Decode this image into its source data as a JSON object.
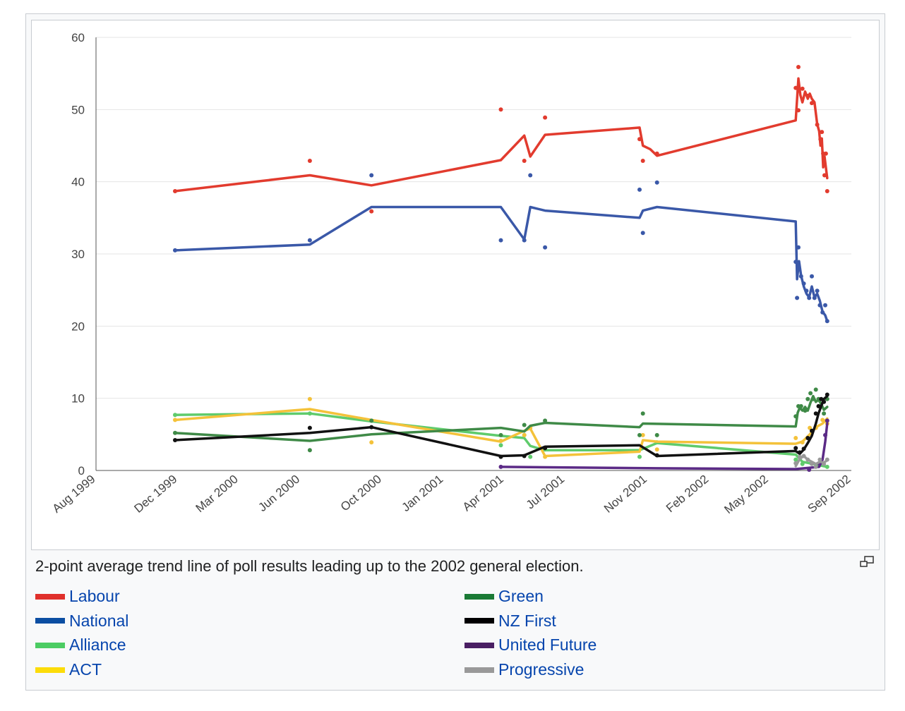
{
  "caption": "2-point average trend line of poll results leading up to the 2002 general election.",
  "icons": {
    "magnify": "magnify-clip-icon"
  },
  "legend": [
    {
      "label": "Labour",
      "color": "#e0302b"
    },
    {
      "label": "Green",
      "color": "#1a7a35"
    },
    {
      "label": "National",
      "color": "#0b4ea2"
    },
    {
      "label": "NZ First",
      "color": "#000000"
    },
    {
      "label": "Alliance",
      "color": "#4ccc63"
    },
    {
      "label": "United Future",
      "color": "#4a1f63"
    },
    {
      "label": "ACT",
      "color": "#fcdc0a"
    },
    {
      "label": "Progressive",
      "color": "#999999"
    }
  ],
  "chart_data": {
    "type": "line",
    "x_ticks": [
      "Aug 1999",
      "Dec 1999",
      "Mar 2000",
      "Jun 2000",
      "Oct 2000",
      "Jan 2001",
      "Apr 2001",
      "Jul 2001",
      "Nov 2001",
      "Feb 2002",
      "May 2002",
      "Sep 2002"
    ],
    "x_range": [
      "1999-08-01",
      "2002-09-01"
    ],
    "ylim": [
      0,
      60
    ],
    "y_ticks": [
      0,
      10,
      20,
      30,
      40,
      50,
      60
    ],
    "grid": true,
    "series": [
      {
        "name": "Labour",
        "color": "#e23b2e",
        "line": [
          [
            "1999-11-27",
            38.7
          ],
          [
            "2000-06-15",
            40.9
          ],
          [
            "2000-09-15",
            39.5
          ],
          [
            "2001-03-27",
            43
          ],
          [
            "2001-05-01",
            46.4
          ],
          [
            "2001-05-10",
            43.5
          ],
          [
            "2001-06-01",
            46.5
          ],
          [
            "2001-10-20",
            47.5
          ],
          [
            "2001-10-25",
            45
          ],
          [
            "2001-11-05",
            44.5
          ],
          [
            "2001-11-15",
            43.6
          ],
          [
            "2002-06-10",
            48.5
          ],
          [
            "2002-06-14",
            54.3
          ],
          [
            "2002-06-17",
            52
          ],
          [
            "2002-06-20",
            51
          ],
          [
            "2002-06-24",
            52.5
          ],
          [
            "2002-06-28",
            51.5
          ],
          [
            "2002-07-01",
            52.2
          ],
          [
            "2002-07-04",
            51.5
          ],
          [
            "2002-07-08",
            51
          ],
          [
            "2002-07-12",
            48
          ],
          [
            "2002-07-15",
            47
          ],
          [
            "2002-07-17",
            45
          ],
          [
            "2002-07-19",
            46
          ],
          [
            "2002-07-21",
            42
          ],
          [
            "2002-07-23",
            43.5
          ],
          [
            "2002-07-25",
            42
          ],
          [
            "2002-07-27",
            40.5
          ]
        ],
        "points": [
          [
            "1999-11-27",
            38.7
          ],
          [
            "2000-06-15",
            42.9
          ],
          [
            "2000-09-15",
            35.9
          ],
          [
            "2001-03-27",
            50
          ],
          [
            "2001-05-01",
            42.9
          ],
          [
            "2001-06-01",
            48.9
          ],
          [
            "2001-10-20",
            45.9
          ],
          [
            "2001-10-25",
            42.9
          ],
          [
            "2001-11-15",
            43.9
          ],
          [
            "2002-06-10",
            53
          ],
          [
            "2002-06-14",
            55.9
          ],
          [
            "2002-06-14",
            49.9
          ],
          [
            "2002-06-20",
            52.9
          ],
          [
            "2002-06-28",
            51.9
          ],
          [
            "2002-07-04",
            50.9
          ],
          [
            "2002-07-12",
            47.9
          ],
          [
            "2002-07-17",
            45.9
          ],
          [
            "2002-07-19",
            46.9
          ],
          [
            "2002-07-21",
            43.9
          ],
          [
            "2002-07-23",
            40.9
          ],
          [
            "2002-07-25",
            43.9
          ],
          [
            "2002-07-27",
            38.7
          ]
        ]
      },
      {
        "name": "National",
        "color": "#3a58a8",
        "line": [
          [
            "1999-11-27",
            30.5
          ],
          [
            "2000-06-15",
            31.3
          ],
          [
            "2000-09-15",
            36.5
          ],
          [
            "2001-03-27",
            36.5
          ],
          [
            "2001-05-01",
            32
          ],
          [
            "2001-05-10",
            36.5
          ],
          [
            "2001-06-01",
            36
          ],
          [
            "2001-10-20",
            35
          ],
          [
            "2001-10-25",
            36
          ],
          [
            "2001-11-15",
            36.5
          ],
          [
            "2002-06-10",
            34.5
          ],
          [
            "2002-06-12",
            26.5
          ],
          [
            "2002-06-15",
            29
          ],
          [
            "2002-06-18",
            27
          ],
          [
            "2002-06-22",
            25.5
          ],
          [
            "2002-06-26",
            24.5
          ],
          [
            "2002-06-30",
            24
          ],
          [
            "2002-07-04",
            25.5
          ],
          [
            "2002-07-08",
            24
          ],
          [
            "2002-07-12",
            24.5
          ],
          [
            "2002-07-16",
            23.5
          ],
          [
            "2002-07-20",
            22
          ],
          [
            "2002-07-24",
            21.5
          ],
          [
            "2002-07-27",
            20.7
          ]
        ],
        "points": [
          [
            "1999-11-27",
            30.5
          ],
          [
            "2000-06-15",
            31.9
          ],
          [
            "2000-09-15",
            40.9
          ],
          [
            "2001-03-27",
            31.9
          ],
          [
            "2001-05-01",
            31.9
          ],
          [
            "2001-05-10",
            40.9
          ],
          [
            "2001-06-01",
            30.9
          ],
          [
            "2001-10-20",
            38.9
          ],
          [
            "2001-10-25",
            32.9
          ],
          [
            "2001-11-15",
            39.9
          ],
          [
            "2002-06-10",
            28.9
          ],
          [
            "2002-06-12",
            23.9
          ],
          [
            "2002-06-14",
            30.9
          ],
          [
            "2002-06-18",
            26.9
          ],
          [
            "2002-06-22",
            25.9
          ],
          [
            "2002-06-26",
            24.9
          ],
          [
            "2002-06-30",
            23.9
          ],
          [
            "2002-07-04",
            26.9
          ],
          [
            "2002-07-08",
            23.9
          ],
          [
            "2002-07-12",
            24.9
          ],
          [
            "2002-07-16",
            22.9
          ],
          [
            "2002-07-20",
            21.9
          ],
          [
            "2002-07-24",
            22.9
          ],
          [
            "2002-07-27",
            20.7
          ]
        ]
      },
      {
        "name": "Alliance",
        "color": "#5fcb6c",
        "line": [
          [
            "1999-11-27",
            7.7
          ],
          [
            "2000-06-15",
            7.9
          ],
          [
            "2000-09-15",
            6.8
          ],
          [
            "2001-03-27",
            4.8
          ],
          [
            "2001-05-01",
            4.5
          ],
          [
            "2001-05-10",
            3.4
          ],
          [
            "2001-06-01",
            2.8
          ],
          [
            "2001-10-20",
            2.8
          ],
          [
            "2001-11-15",
            3.8
          ],
          [
            "2002-06-10",
            2.2
          ],
          [
            "2002-06-20",
            1.2
          ],
          [
            "2002-07-27",
            0.5
          ]
        ],
        "points": [
          [
            "1999-11-27",
            7.7
          ],
          [
            "2000-06-15",
            7.9
          ],
          [
            "2000-09-15",
            6.9
          ],
          [
            "2001-03-27",
            3.5
          ],
          [
            "2001-05-01",
            4.9
          ],
          [
            "2001-05-10",
            1.9
          ],
          [
            "2001-06-01",
            2.9
          ],
          [
            "2001-10-20",
            1.9
          ],
          [
            "2001-11-15",
            3.9
          ],
          [
            "2002-06-10",
            1.5
          ],
          [
            "2002-06-20",
            0.9
          ],
          [
            "2002-07-27",
            0.5
          ]
        ]
      },
      {
        "name": "ACT",
        "color": "#f4c23a",
        "line": [
          [
            "1999-11-27",
            7
          ],
          [
            "2000-06-15",
            8.5
          ],
          [
            "2000-09-15",
            7
          ],
          [
            "2001-03-27",
            4
          ],
          [
            "2001-05-01",
            5.5
          ],
          [
            "2001-05-10",
            5.8
          ],
          [
            "2001-06-01",
            2
          ],
          [
            "2001-10-20",
            2.6
          ],
          [
            "2001-10-25",
            4.2
          ],
          [
            "2001-11-15",
            4
          ],
          [
            "2002-06-10",
            3.7
          ],
          [
            "2002-06-20",
            4
          ],
          [
            "2002-07-01",
            5
          ],
          [
            "2002-07-10",
            6
          ],
          [
            "2002-07-20",
            6.5
          ],
          [
            "2002-07-27",
            7.2
          ]
        ],
        "points": [
          [
            "1999-11-27",
            7
          ],
          [
            "2000-06-15",
            9.9
          ],
          [
            "2000-09-15",
            3.9
          ],
          [
            "2001-03-27",
            4.1
          ],
          [
            "2001-05-01",
            4.9
          ],
          [
            "2001-05-10",
            5.9
          ],
          [
            "2001-06-01",
            1.9
          ],
          [
            "2001-10-25",
            4.9
          ],
          [
            "2001-11-15",
            2.9
          ],
          [
            "2002-06-10",
            4.5
          ],
          [
            "2002-06-20",
            3.9
          ],
          [
            "2002-07-01",
            5.9
          ],
          [
            "2002-07-10",
            5.9
          ],
          [
            "2002-07-20",
            7
          ],
          [
            "2002-07-27",
            6.5
          ]
        ]
      },
      {
        "name": "Green",
        "color": "#3f8a47",
        "line": [
          [
            "1999-11-27",
            5.2
          ],
          [
            "2000-06-15",
            4.1
          ],
          [
            "2000-09-15",
            5
          ],
          [
            "2001-03-27",
            5.9
          ],
          [
            "2001-05-01",
            5.4
          ],
          [
            "2001-05-10",
            6.2
          ],
          [
            "2001-06-01",
            6.6
          ],
          [
            "2001-10-20",
            6
          ],
          [
            "2001-10-25",
            6.5
          ],
          [
            "2002-06-10",
            6.1
          ],
          [
            "2002-06-13",
            8
          ],
          [
            "2002-06-16",
            8.7
          ],
          [
            "2002-06-20",
            8.3
          ],
          [
            "2002-06-24",
            8.8
          ],
          [
            "2002-06-28",
            8.3
          ],
          [
            "2002-07-02",
            9.4
          ],
          [
            "2002-07-06",
            10.3
          ],
          [
            "2002-07-10",
            9.5
          ],
          [
            "2002-07-14",
            9.8
          ],
          [
            "2002-07-18",
            9.2
          ],
          [
            "2002-07-22",
            8.4
          ],
          [
            "2002-07-27",
            8.8
          ]
        ],
        "points": [
          [
            "1999-11-27",
            5.2
          ],
          [
            "2000-06-15",
            2.8
          ],
          [
            "2000-09-15",
            6.9
          ],
          [
            "2001-03-27",
            4.9
          ],
          [
            "2001-05-01",
            6.3
          ],
          [
            "2001-06-01",
            6.9
          ],
          [
            "2001-10-20",
            4.9
          ],
          [
            "2001-10-25",
            7.9
          ],
          [
            "2001-11-15",
            4.9
          ],
          [
            "2002-06-10",
            7.5
          ],
          [
            "2002-06-14",
            8.9
          ],
          [
            "2002-06-18",
            8.9
          ],
          [
            "2002-06-24",
            8.3
          ],
          [
            "2002-06-28",
            9.9
          ],
          [
            "2002-07-02",
            10.7
          ],
          [
            "2002-07-06",
            9.9
          ],
          [
            "2002-07-10",
            11.2
          ],
          [
            "2002-07-14",
            9.9
          ],
          [
            "2002-07-18",
            8.9
          ],
          [
            "2002-07-22",
            7.9
          ],
          [
            "2002-07-27",
            9.9
          ]
        ]
      },
      {
        "name": "NZ First",
        "color": "#111111",
        "line": [
          [
            "1999-11-27",
            4.2
          ],
          [
            "2000-06-15",
            5.2
          ],
          [
            "2000-09-15",
            6
          ],
          [
            "2001-03-27",
            2
          ],
          [
            "2001-05-01",
            2.1
          ],
          [
            "2001-06-01",
            3.3
          ],
          [
            "2001-10-20",
            3.5
          ],
          [
            "2001-11-15",
            2
          ],
          [
            "2002-06-10",
            2.7
          ],
          [
            "2002-06-16",
            2.3
          ],
          [
            "2002-06-22",
            2.9
          ],
          [
            "2002-06-28",
            3.8
          ],
          [
            "2002-07-04",
            4.8
          ],
          [
            "2002-07-10",
            6.5
          ],
          [
            "2002-07-14",
            7.9
          ],
          [
            "2002-07-18",
            8.9
          ],
          [
            "2002-07-22",
            9.9
          ],
          [
            "2002-07-27",
            10.3
          ]
        ],
        "points": [
          [
            "1999-11-27",
            4.2
          ],
          [
            "2000-06-15",
            5.9
          ],
          [
            "2000-09-15",
            6
          ],
          [
            "2001-03-27",
            1.9
          ],
          [
            "2001-05-01",
            2
          ],
          [
            "2001-06-01",
            3.1
          ],
          [
            "2001-11-15",
            2.1
          ],
          [
            "2002-06-10",
            3.1
          ],
          [
            "2002-06-16",
            2.5
          ],
          [
            "2002-06-22",
            3
          ],
          [
            "2002-06-28",
            4.5
          ],
          [
            "2002-07-04",
            5.5
          ],
          [
            "2002-07-10",
            7.9
          ],
          [
            "2002-07-14",
            8.9
          ],
          [
            "2002-07-18",
            9.9
          ],
          [
            "2002-07-22",
            9.5
          ],
          [
            "2002-07-27",
            10.5
          ]
        ]
      },
      {
        "name": "United Future",
        "color": "#5b2a86",
        "line": [
          [
            "2001-03-27",
            0.5
          ],
          [
            "2001-11-15",
            0.3
          ],
          [
            "2002-06-10",
            0.2
          ],
          [
            "2002-07-15",
            0.5
          ],
          [
            "2002-07-20",
            1.5
          ],
          [
            "2002-07-24",
            4
          ],
          [
            "2002-07-27",
            6.5
          ]
        ],
        "points": [
          [
            "2001-03-27",
            0.5
          ],
          [
            "2002-06-30",
            0.1
          ],
          [
            "2002-07-15",
            1
          ],
          [
            "2002-07-24",
            4.9
          ],
          [
            "2002-07-27",
            6.9
          ]
        ]
      },
      {
        "name": "Progressive",
        "color": "#999999",
        "line": [
          [
            "2002-06-10",
            0.6
          ],
          [
            "2002-06-16",
            1.6
          ],
          [
            "2002-06-22",
            2
          ],
          [
            "2002-06-28",
            1.5
          ],
          [
            "2002-07-04",
            1.2
          ],
          [
            "2002-07-10",
            0.9
          ],
          [
            "2002-07-16",
            1.2
          ],
          [
            "2002-07-22",
            1.1
          ],
          [
            "2002-07-27",
            1.4
          ]
        ],
        "points": [
          [
            "2002-06-10",
            1
          ],
          [
            "2002-06-16",
            1.9
          ],
          [
            "2002-06-22",
            2
          ],
          [
            "2002-06-28",
            1.5
          ],
          [
            "2002-07-04",
            0.9
          ],
          [
            "2002-07-10",
            0.5
          ],
          [
            "2002-07-16",
            1.5
          ],
          [
            "2002-07-22",
            0.9
          ],
          [
            "2002-07-27",
            1.5
          ]
        ]
      }
    ]
  }
}
